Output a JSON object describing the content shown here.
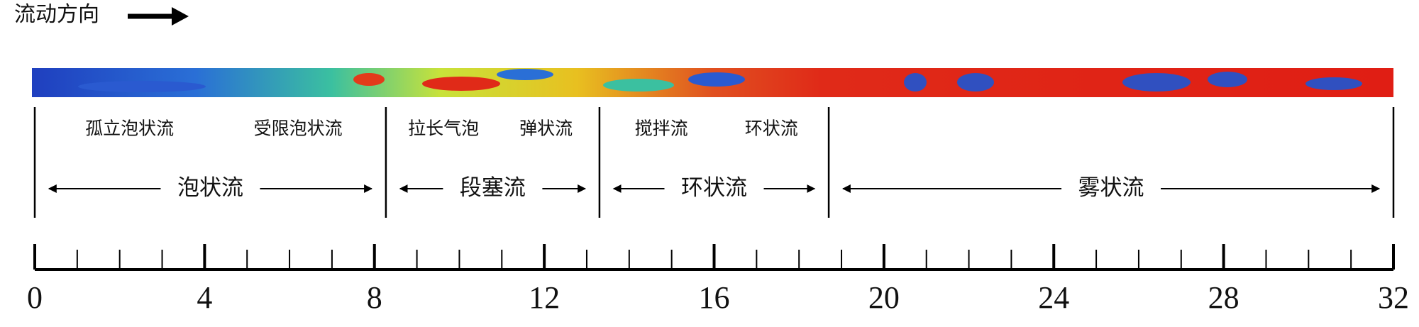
{
  "title": "流动方向",
  "regions": [
    {
      "label": "泡状流",
      "start": 0,
      "end": 8.27,
      "subtypes": [
        "孤立泡状流",
        "受限泡状流"
      ]
    },
    {
      "label": "段塞流",
      "start": 8.27,
      "end": 13.3,
      "subtypes": [
        "拉长气泡",
        "弹状流"
      ]
    },
    {
      "label": "环状流",
      "start": 13.3,
      "end": 18.7,
      "subtypes": [
        "搅拌流",
        "环状流"
      ]
    },
    {
      "label": "雾状流",
      "start": 18.7,
      "end": 32,
      "subtypes": []
    }
  ],
  "scale": {
    "min": 0,
    "max": 32,
    "labels": [
      0,
      4,
      8,
      12,
      16,
      20,
      24,
      28,
      32
    ]
  }
}
